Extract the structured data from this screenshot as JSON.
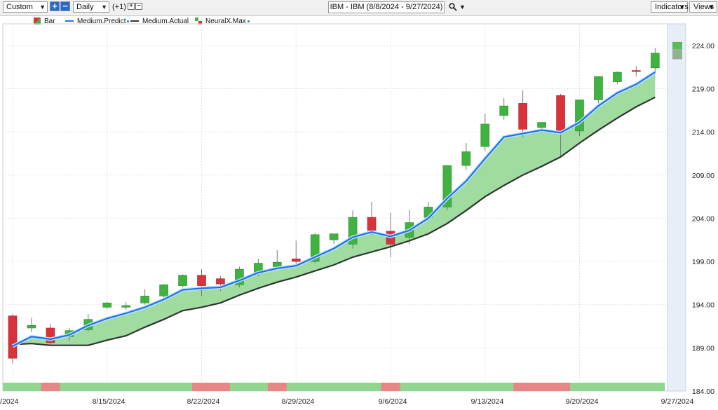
{
  "toolbar": {
    "period_select": "Custom",
    "interval_select": "Daily",
    "offset_label": "(+1)",
    "symbol_title": "IBM - IBM (8/8/2024 - 9/27/2024)",
    "indicators_label": "Indicators",
    "views_label": "Views",
    "icons": [
      "add-icon",
      "remove-icon",
      "search-icon",
      "chevron-down-icon"
    ]
  },
  "legend": [
    {
      "label": "Bar",
      "icon": "bar-icon"
    },
    {
      "label": "Medium.Predict",
      "color": "#1a73e8"
    },
    {
      "label": "Medium.Actual",
      "color": "#333333"
    },
    {
      "label": "NeuralX.Max",
      "icon": "neuralx-icon"
    }
  ],
  "colors": {
    "up": "#3fb23f",
    "down": "#d8323a",
    "predict": "#1a73e8",
    "actual": "#333333",
    "fill": "#8fd68f",
    "band_up": "#8fd68f",
    "band_down": "#e88585"
  },
  "chart_data": {
    "type": "candlestick",
    "dates": [
      "8/8",
      "8/9",
      "8/12",
      "8/13",
      "8/14",
      "8/15",
      "8/16",
      "8/19",
      "8/20",
      "8/21",
      "8/22",
      "8/23",
      "8/26",
      "8/27",
      "8/28",
      "8/29",
      "8/30",
      "9/3",
      "9/4",
      "9/5",
      "9/6",
      "9/9",
      "9/10",
      "9/11",
      "9/12",
      "9/13",
      "9/16",
      "9/17",
      "9/18",
      "9/19",
      "9/20",
      "9/23",
      "9/24",
      "9/25",
      "9/26",
      "9/27"
    ],
    "ohlc": [
      [
        192.7,
        192.9,
        187.2,
        187.8
      ],
      [
        191.3,
        192.5,
        190.8,
        191.6
      ],
      [
        191.3,
        191.8,
        189.2,
        189.6
      ],
      [
        190.3,
        191.3,
        189.8,
        191.0
      ],
      [
        191.1,
        192.9,
        190.9,
        192.3
      ],
      [
        193.7,
        194.3,
        193.5,
        194.2
      ],
      [
        193.7,
        194.3,
        193.4,
        193.9
      ],
      [
        194.2,
        195.8,
        194.0,
        195.0
      ],
      [
        195.0,
        196.4,
        194.5,
        196.3
      ],
      [
        196.2,
        197.5,
        196.0,
        197.4
      ],
      [
        197.4,
        198.1,
        195.0,
        196.2
      ],
      [
        197.0,
        197.3,
        195.6,
        196.4
      ],
      [
        196.3,
        198.4,
        196.0,
        198.1
      ],
      [
        197.6,
        199.3,
        197.3,
        198.8
      ],
      [
        198.4,
        200.3,
        198.0,
        198.9
      ],
      [
        199.3,
        201.4,
        198.5,
        199.0
      ],
      [
        199.0,
        202.3,
        198.8,
        202.1
      ],
      [
        201.5,
        202.1,
        201.0,
        202.2
      ],
      [
        201.0,
        204.9,
        200.5,
        204.1
      ],
      [
        204.1,
        205.9,
        202.1,
        202.6
      ],
      [
        202.5,
        204.6,
        199.5,
        201.0
      ],
      [
        201.8,
        205.0,
        201.0,
        203.5
      ],
      [
        204.1,
        205.9,
        203.7,
        205.3
      ],
      [
        205.3,
        210.1,
        204.9,
        210.1
      ],
      [
        210.1,
        212.7,
        209.6,
        211.7
      ],
      [
        212.3,
        216.1,
        211.8,
        214.9
      ],
      [
        215.9,
        217.9,
        215.4,
        217.0
      ],
      [
        217.3,
        218.8,
        213.4,
        214.3
      ],
      [
        214.5,
        215.1,
        213.9,
        215.1
      ],
      [
        218.2,
        218.4,
        211.0,
        214.1
      ],
      [
        214.1,
        217.7,
        213.5,
        217.7
      ],
      [
        217.7,
        220.4,
        217.3,
        220.4
      ],
      [
        219.8,
        221.0,
        219.5,
        220.9
      ],
      [
        221.1,
        221.6,
        220.4,
        221.0
      ],
      [
        221.4,
        223.7,
        220.9,
        223.1
      ],
      [
        222.4,
        224.6,
        222.4,
        224.4
      ]
    ],
    "medium_predict": [
      189.2,
      190.3,
      190.0,
      190.5,
      191.6,
      192.4,
      193.0,
      193.7,
      194.6,
      195.7,
      195.9,
      196.0,
      196.8,
      197.7,
      198.2,
      198.5,
      199.5,
      200.5,
      201.8,
      202.4,
      201.9,
      202.6,
      204.0,
      206.3,
      208.3,
      210.9,
      213.4,
      213.8,
      214.2,
      213.9,
      215.1,
      217.0,
      218.5,
      219.5,
      220.9
    ],
    "medium_actual": [
      189.4,
      189.5,
      189.3,
      189.3,
      189.3,
      189.9,
      190.4,
      191.4,
      192.3,
      193.3,
      193.7,
      194.2,
      195.1,
      195.9,
      196.6,
      197.2,
      197.9,
      198.6,
      199.5,
      200.1,
      200.7,
      201.4,
      202.2,
      203.4,
      204.9,
      206.5,
      207.8,
      209.0,
      210.0,
      211.1,
      212.7,
      214.2,
      215.6,
      216.9,
      218.0
    ],
    "band_pattern": [
      "up",
      "up",
      "down",
      "up",
      "up",
      "up",
      "up",
      "up",
      "up",
      "up",
      "down",
      "down",
      "up",
      "up",
      "down",
      "up",
      "up",
      "up",
      "up",
      "up",
      "down",
      "up",
      "up",
      "up",
      "up",
      "up",
      "up",
      "down",
      "down",
      "down",
      "up",
      "up",
      "up",
      "up",
      "up"
    ],
    "y_ticks": [
      "184.00",
      "189.00",
      "194.00",
      "199.00",
      "204.00",
      "209.00",
      "214.00",
      "219.00",
      "224.00"
    ],
    "ylim": [
      184,
      226.5
    ],
    "x_tick_labels": [
      "8/8/2024",
      "8/15/2024",
      "8/22/2024",
      "8/29/2024",
      "9/6/2024",
      "9/13/2024",
      "9/20/2024",
      "9/27/2024"
    ],
    "grid": true
  }
}
